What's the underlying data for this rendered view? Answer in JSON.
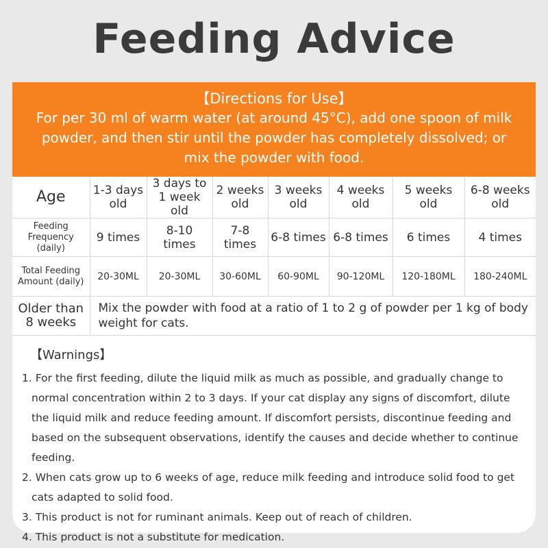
{
  "title": "Feeding Advice",
  "directions": {
    "heading": "【Directions for Use】",
    "text": "For per 30 ml of warm water (at around 45°C), add one spoon of milk powder, and then stir until the powder has completely dissolved; or mix the powder with food."
  },
  "table": {
    "rows": [
      [
        "Age",
        "1-3 days old",
        "3 days to 1 week old",
        "2 weeks old",
        "3 weeks old",
        "4 weeks old",
        "5 weeks old",
        "6-8 weeks old"
      ],
      [
        "Feeding Frequency (daily)",
        "9 times",
        "8-10 times",
        "7-8 times",
        "6-8 times",
        "6-8 times",
        "6 times",
        "4 times"
      ],
      [
        "Total Feeding Amount (daily)",
        "20-30ML",
        "20-30ML",
        "30-60ML",
        "60-90ML",
        "90-120ML",
        "120-180ML",
        "180-240ML"
      ]
    ],
    "note": {
      "label": "Older than 8 weeks",
      "text": "Mix the powder with food at a ratio of 1 to 2 g of powder per 1 kg of body weight for cats."
    }
  },
  "warnings": {
    "heading": "【Warnings】",
    "items": [
      "1. For the first feeding, dilute the liquid milk as much as possible, and gradually change to normal concentration within 2 to 3 days. If your cat display any signs of discomfort, dilute the liquid milk and reduce feeding amount. If discomfort persists, discontinue feeding and based on the subsequent observations, identify the causes and decide whether to continue feeding.",
      "2. When cats grow up to 6 weeks of age, reduce milk feeding and introduce solid food to get cats adapted to solid food.",
      "3. This product is not for ruminant animals. Keep out of reach of children.",
      "4. This product is not a substitute for medication."
    ]
  }
}
